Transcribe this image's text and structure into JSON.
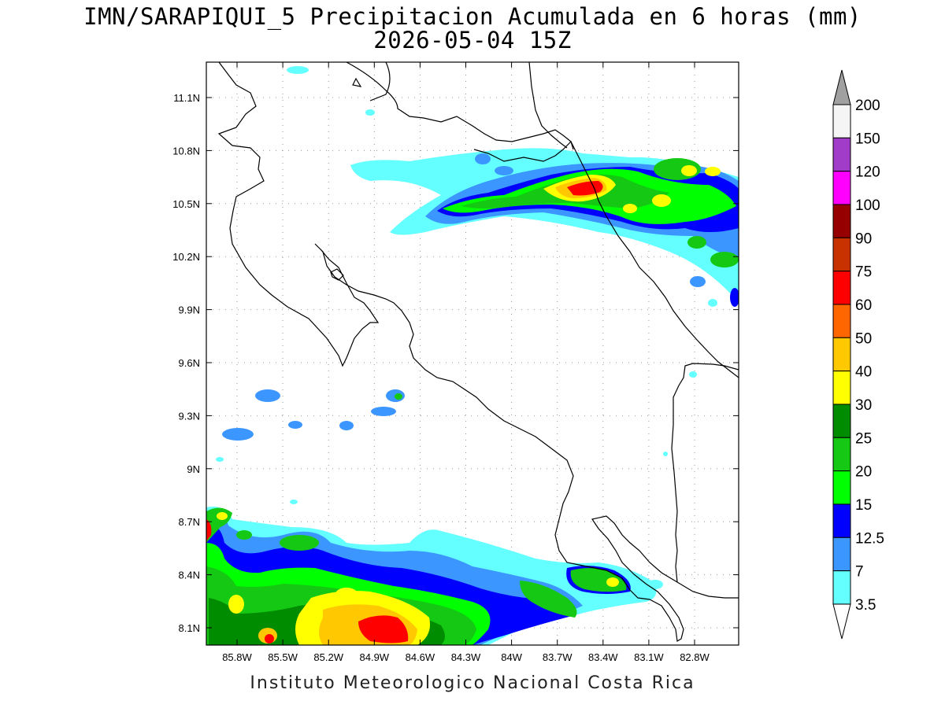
{
  "title_line1": "IMN/SARAPIQUI_5 Precipitacion Acumulada en 6 horas (mm)",
  "title_line2": "2026-05-04 15Z",
  "footer": "Instituto Meteorologico Nacional Costa Rica",
  "map": {
    "lon_ticks": [
      "85.8W",
      "85.5W",
      "85.2W",
      "84.9W",
      "84.6W",
      "84.3W",
      "84W",
      "83.7W",
      "83.4W",
      "83.1W",
      "82.8W"
    ],
    "lat_ticks": [
      "11.1N",
      "10.8N",
      "10.5N",
      "10.2N",
      "9.9N",
      "9.6N",
      "9.3N",
      "9N",
      "8.7N",
      "8.4N",
      "8.1N"
    ],
    "grid": true
  },
  "colorbar": {
    "levels": [
      "200",
      "150",
      "120",
      "100",
      "90",
      "75",
      "60",
      "50",
      "40",
      "30",
      "25",
      "20",
      "15",
      "12.5",
      "7",
      "3.5"
    ],
    "colors": [
      "#a0a0a0",
      "#f5f5f5",
      "#a03cc8",
      "#ff00ff",
      "#960000",
      "#c83200",
      "#ff0000",
      "#ff6600",
      "#ffc800",
      "#ffff00",
      "#008c00",
      "#14c814",
      "#00ff00",
      "#0000ff",
      "#3c96ff",
      "#64ffff",
      "#ffffff"
    ]
  }
}
